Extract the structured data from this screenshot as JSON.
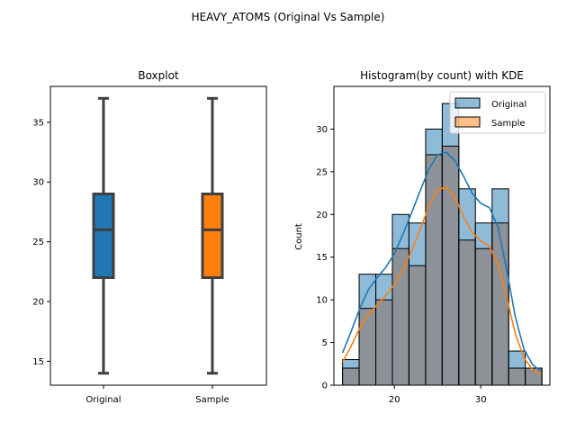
{
  "figure": {
    "suptitle": "HEAVY_ATOMS (Original Vs Sample)"
  },
  "colors": {
    "original": "#1f77b4",
    "sample": "#ff7f0e",
    "box_edge": "#3f3f3f",
    "overlap": "#8c9297"
  },
  "chart_data": [
    {
      "type": "box",
      "title": "Boxplot",
      "xlabel": "",
      "ylabel": "",
      "ylim": [
        13,
        38
      ],
      "yticks": [
        15,
        20,
        25,
        30,
        35
      ],
      "categories": [
        "Original",
        "Sample"
      ],
      "boxes": [
        {
          "name": "Original",
          "min": 14,
          "q1": 22,
          "median": 26,
          "q3": 29,
          "max": 37
        },
        {
          "name": "Sample",
          "min": 14,
          "q1": 22,
          "median": 26,
          "q3": 29,
          "max": 37
        }
      ]
    },
    {
      "type": "histogram",
      "title": "Histogram(by count) with KDE",
      "xlabel": "",
      "ylabel": "Count",
      "xlim": [
        13,
        38
      ],
      "ylim": [
        0,
        35
      ],
      "xticks": [
        20,
        30
      ],
      "yticks": [
        0,
        5,
        10,
        15,
        20,
        25,
        30
      ],
      "legend": {
        "position": "top-right",
        "entries": [
          "Original",
          "Sample"
        ]
      },
      "bin_edges": [
        14,
        15.92,
        17.85,
        19.77,
        21.69,
        23.62,
        25.54,
        27.46,
        29.38,
        31.31,
        33.23,
        35.15,
        37.08
      ],
      "series": [
        {
          "name": "Original",
          "counts": [
            3,
            13,
            13,
            20,
            19,
            30,
            33,
            23,
            19,
            23,
            4,
            2
          ]
        },
        {
          "name": "Sample",
          "counts": [
            2,
            9,
            10,
            16,
            14,
            27,
            28,
            17,
            16,
            19,
            2,
            2
          ]
        }
      ],
      "kde": [
        {
          "name": "Original",
          "x": [
            14,
            15,
            16,
            17,
            18,
            19,
            20,
            21,
            22,
            23,
            24,
            25,
            26,
            27,
            28,
            29,
            30,
            31,
            32,
            33,
            34,
            35,
            36,
            37
          ],
          "y": [
            3.8,
            6.3,
            9.0,
            11.2,
            12.6,
            13.8,
            15.4,
            17.7,
            20.2,
            22.8,
            25.3,
            27.0,
            27.3,
            26.3,
            24.5,
            22.5,
            21.3,
            20.8,
            18.5,
            13.5,
            8.0,
            4.2,
            2.4,
            1.6
          ]
        },
        {
          "name": "Sample",
          "x": [
            14,
            15,
            16,
            17,
            18,
            19,
            20,
            21,
            22,
            23,
            24,
            25,
            26,
            27,
            28,
            29,
            30,
            31,
            32,
            33,
            34,
            35,
            36,
            37
          ],
          "y": [
            2.7,
            4.6,
            6.7,
            8.3,
            9.4,
            10.5,
            11.8,
            13.6,
            15.7,
            18.3,
            21.0,
            22.9,
            23.2,
            22.0,
            19.8,
            17.9,
            16.9,
            16.3,
            14.1,
            10.3,
            6.0,
            3.2,
            1.8,
            1.3
          ]
        }
      ]
    }
  ]
}
